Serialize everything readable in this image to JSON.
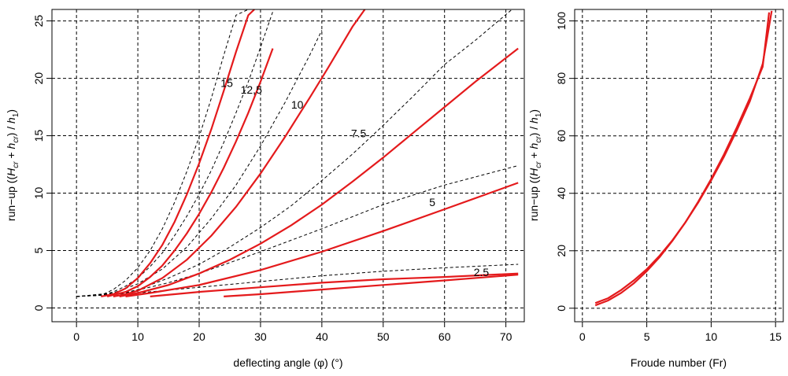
{
  "chart_data": [
    {
      "type": "line",
      "xlabel": "deflecting angle (φ) (°)",
      "ylabel": "run−up ((H_cr + h_cr) / h_1)",
      "ylabel_parts": {
        "pre": "run−up ((",
        "H": "H",
        "cr1": "cr",
        "plus": " + ",
        "h": "h",
        "cr2": "cr",
        "mid": ") / ",
        "h1": "h",
        "sub1": "1",
        "post": ")"
      },
      "xlim": [
        -4,
        73
      ],
      "ylim": [
        -1.2,
        26
      ],
      "xticks": [
        0,
        10,
        20,
        30,
        40,
        50,
        60,
        70
      ],
      "yticks": [
        0,
        5,
        10,
        15,
        20,
        25
      ],
      "grid": true,
      "colors": {
        "solid": "#e41a1c",
        "dashed": "#000000"
      },
      "series_solid": [
        {
          "label": "15",
          "x": [
            4,
            6,
            8,
            10,
            12,
            14,
            16,
            18,
            20,
            22,
            24,
            26,
            28,
            29
          ],
          "y": [
            1.0,
            1.2,
            1.7,
            2.6,
            3.9,
            5.5,
            7.5,
            9.9,
            12.6,
            15.6,
            18.9,
            22.3,
            25.5,
            26.0
          ]
        },
        {
          "label": "12,5",
          "x": [
            5,
            8,
            10,
            12,
            14,
            16,
            18,
            20,
            22,
            24,
            26,
            28,
            30,
            32
          ],
          "y": [
            1.0,
            1.4,
            1.9,
            2.7,
            3.7,
            5.0,
            6.5,
            8.2,
            10.1,
            12.2,
            14.5,
            17.0,
            19.7,
            22.6
          ]
        },
        {
          "label": "10",
          "x": [
            6,
            8,
            10,
            14,
            18,
            22,
            26,
            30,
            34,
            38,
            41,
            43,
            45,
            47
          ],
          "y": [
            1.0,
            1.2,
            1.5,
            2.6,
            4.2,
            6.3,
            8.8,
            11.7,
            14.9,
            18.3,
            20.9,
            22.7,
            24.5,
            26.0
          ]
        },
        {
          "label": "7.5",
          "x": [
            7,
            10,
            15,
            20,
            25,
            30,
            35,
            40,
            45,
            50,
            55,
            60,
            65,
            72
          ],
          "y": [
            1.0,
            1.3,
            2.0,
            3.0,
            4.2,
            5.6,
            7.2,
            9.0,
            11.0,
            13.1,
            15.3,
            17.5,
            19.7,
            22.6
          ]
        },
        {
          "label": "5",
          "x": [
            8,
            12,
            20,
            30,
            40,
            50,
            60,
            72
          ],
          "y": [
            1.0,
            1.3,
            2.0,
            3.3,
            4.9,
            6.7,
            8.6,
            10.9
          ]
        },
        {
          "label": "2.5",
          "x": [
            12,
            20,
            30,
            40,
            50,
            60,
            72
          ],
          "y": [
            1.0,
            1.4,
            1.8,
            2.2,
            2.5,
            2.7,
            3.0
          ]
        },
        {
          "label": "",
          "x": [
            24,
            30,
            40,
            50,
            60,
            72
          ],
          "y": [
            1.0,
            1.2,
            1.6,
            2.0,
            2.4,
            2.9
          ]
        }
      ],
      "series_dashed": [
        {
          "label": "15",
          "x": [
            0,
            4,
            6,
            8,
            10,
            12,
            14,
            16,
            18,
            20,
            22,
            24,
            26,
            28
          ],
          "y": [
            1.0,
            1.1,
            1.6,
            2.4,
            3.5,
            5.0,
            6.9,
            9.2,
            11.9,
            14.9,
            18.3,
            22.0,
            25.5,
            26.0
          ]
        },
        {
          "label": "12,5",
          "x": [
            0,
            4,
            6,
            8,
            10,
            12,
            14,
            16,
            18,
            20,
            22,
            24,
            26,
            28,
            30,
            32
          ],
          "y": [
            1.0,
            1.1,
            1.4,
            1.9,
            2.6,
            3.6,
            4.8,
            6.3,
            8.0,
            9.9,
            12.0,
            14.4,
            17.0,
            19.7,
            22.7,
            25.8
          ]
        },
        {
          "label": "10",
          "x": [
            0,
            6,
            10,
            14,
            18,
            22,
            26,
            30,
            34,
            38,
            40
          ],
          "y": [
            1.0,
            1.3,
            2.1,
            3.4,
            5.3,
            7.8,
            10.7,
            14.1,
            17.9,
            22.0,
            24.2
          ]
        },
        {
          "label": "7.5",
          "x": [
            0,
            7,
            10,
            15,
            20,
            25,
            30,
            35,
            40,
            45,
            50,
            55,
            60,
            65,
            71
          ],
          "y": [
            1.0,
            1.2,
            1.6,
            2.6,
            3.8,
            5.3,
            7.0,
            8.9,
            11.1,
            13.4,
            15.9,
            18.5,
            21.2,
            23.3,
            26.0
          ]
        },
        {
          "label": "5",
          "x": [
            0,
            8,
            15,
            20,
            30,
            40,
            50,
            60,
            72
          ],
          "y": [
            1.0,
            1.3,
            2.2,
            3.0,
            4.9,
            6.9,
            9.0,
            10.7,
            12.4
          ]
        },
        {
          "label": "2.5",
          "x": [
            0,
            10,
            20,
            30,
            40,
            50,
            60,
            72
          ],
          "y": [
            1.0,
            1.3,
            1.8,
            2.3,
            2.8,
            3.2,
            3.5,
            3.8
          ]
        }
      ],
      "curve_labels": [
        {
          "text": "15",
          "x": 24.5,
          "y": 19.6
        },
        {
          "text": "12,5",
          "x": 28.5,
          "y": 19.0
        },
        {
          "text": "10",
          "x": 36,
          "y": 17.7
        },
        {
          "text": "7.5",
          "x": 46,
          "y": 15.2
        },
        {
          "text": "5",
          "x": 58,
          "y": 9.2
        },
        {
          "text": "2.5",
          "x": 66,
          "y": 3.1
        }
      ]
    },
    {
      "type": "line",
      "xlabel": "Froude number (Fr)",
      "ylabel": "run−up ((H_cr + h_cr) / h_1)",
      "ylabel_parts": {
        "pre": "run−up ((",
        "H": "H",
        "cr1": "cr",
        "plus": " + ",
        "h": "h",
        "cr2": "cr",
        "mid": ") / ",
        "h1": "h",
        "sub1": "1",
        "post": ")"
      },
      "xlim": [
        -0.6,
        15.6
      ],
      "ylim": [
        -4.7,
        104
      ],
      "xticks": [
        0,
        5,
        10,
        15
      ],
      "yticks": [
        0,
        20,
        40,
        60,
        80,
        100
      ],
      "grid": true,
      "series_solid": [
        {
          "label": "",
          "x": [
            1,
            2,
            3,
            4,
            5,
            6,
            7,
            8,
            9,
            10,
            11,
            12,
            13,
            14,
            14.5
          ],
          "y": [
            1.0,
            2.7,
            5.3,
            8.7,
            12.9,
            17.8,
            23.5,
            29.9,
            37.1,
            45.0,
            53.6,
            63.0,
            73.1,
            84.0,
            103.0
          ]
        },
        {
          "label": "",
          "x": [
            1,
            2,
            3,
            4,
            5,
            6,
            7,
            8,
            9,
            10,
            11,
            12,
            13,
            14,
            14.7
          ],
          "y": [
            1.8,
            3.5,
            6.3,
            9.7,
            13.6,
            18.3,
            23.7,
            29.9,
            36.8,
            44.5,
            52.8,
            62.0,
            72.0,
            85.0,
            103.5
          ]
        }
      ]
    }
  ]
}
